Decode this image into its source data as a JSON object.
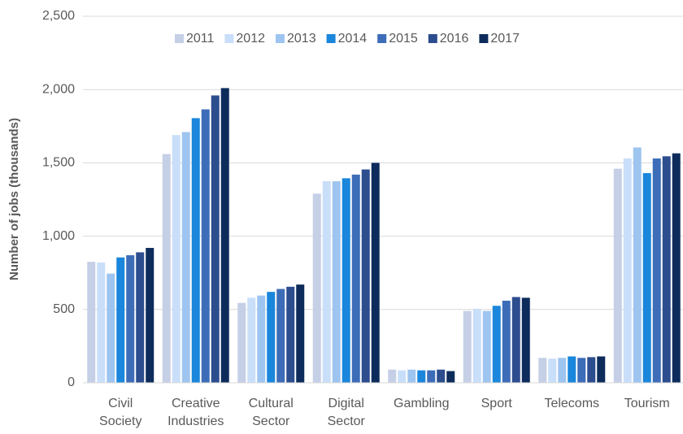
{
  "chart_data": {
    "type": "bar",
    "y_label": "Number of jobs (thousands)",
    "categories": [
      "Civil Society",
      "Creative Industries",
      "Cultural Sector",
      "Digital Sector",
      "Gambling",
      "Sport",
      "Telecoms",
      "Tourism"
    ],
    "series": [
      {
        "name": "2011",
        "color": "#c5cfe6",
        "values": [
          825,
          1560,
          545,
          1290,
          90,
          490,
          170,
          1460
        ]
      },
      {
        "name": "2012",
        "color": "#c9def9",
        "values": [
          820,
          1690,
          580,
          1375,
          85,
          505,
          165,
          1530
        ]
      },
      {
        "name": "2013",
        "color": "#9ec5f0",
        "values": [
          745,
          1710,
          595,
          1375,
          90,
          490,
          170,
          1605
        ]
      },
      {
        "name": "2014",
        "color": "#1a86dc",
        "values": [
          855,
          1805,
          620,
          1395,
          85,
          525,
          180,
          1430
        ]
      },
      {
        "name": "2015",
        "color": "#3d6db8",
        "values": [
          870,
          1865,
          640,
          1420,
          85,
          560,
          170,
          1530
        ]
      },
      {
        "name": "2016",
        "color": "#2c4d8e",
        "values": [
          890,
          1960,
          655,
          1455,
          90,
          585,
          175,
          1545
        ]
      },
      {
        "name": "2017",
        "color": "#0d2c5c",
        "values": [
          920,
          2010,
          670,
          1500,
          80,
          580,
          180,
          1565
        ]
      }
    ],
    "ylim": [
      0,
      2500
    ],
    "yticks": [
      0,
      {
        "value": 500,
        "label": "500"
      },
      {
        "value": 1000,
        "label": "1,000"
      },
      {
        "value": 1500,
        "label": "1,500"
      },
      {
        "value": 2000,
        "label": "2,000"
      },
      {
        "value": 2500,
        "label": "2,500"
      }
    ],
    "grid": true,
    "legend": "top"
  }
}
